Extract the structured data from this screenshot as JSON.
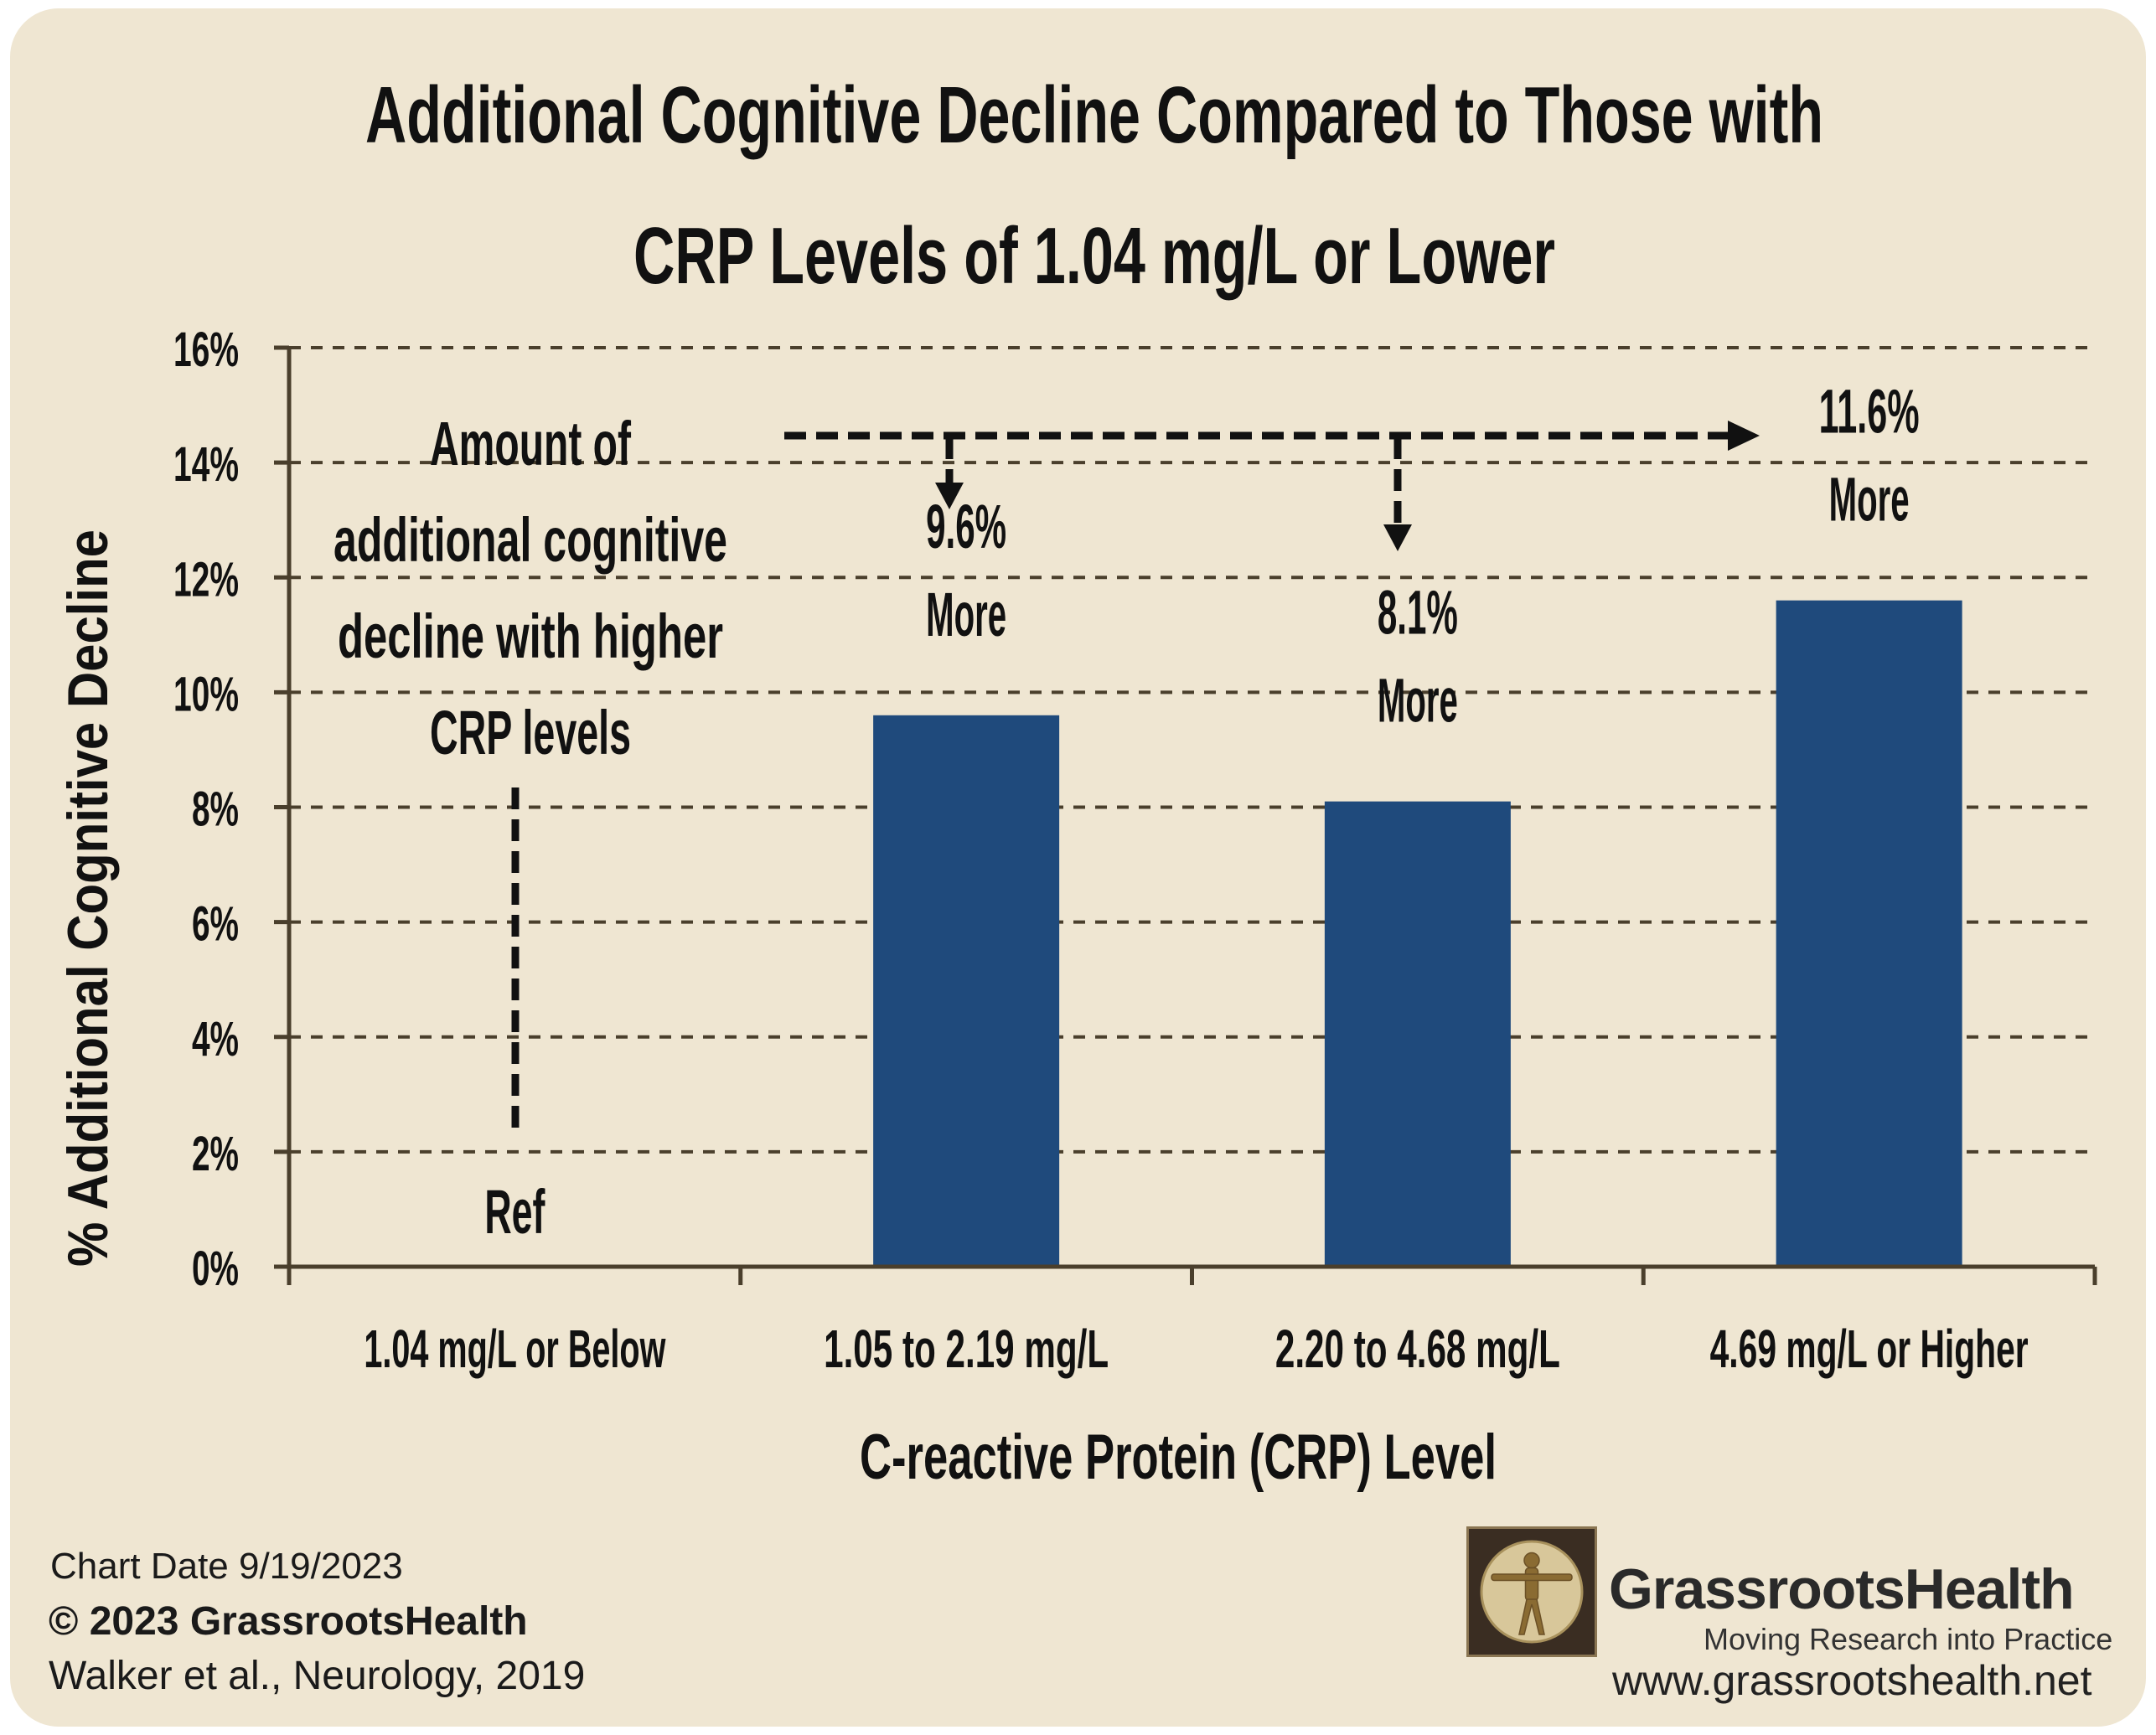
{
  "chart_data": {
    "type": "bar",
    "title": "Additional Cognitive  Decline Compared to Those with CRP Levels of 1.04 mg/L or Lower",
    "title_lines": [
      "Additional Cognitive  Decline Compared to Those with",
      "CRP Levels of 1.04 mg/L or Lower"
    ],
    "xlabel": "C-reactive Protein (CRP) Level",
    "ylabel": "% Additional Cognitive Decline",
    "categories": [
      "1.04 mg/L or Below",
      "1.05 to 2.19 mg/L",
      "2.20 to 4.68 mg/L",
      "4.69 mg/L or Higher"
    ],
    "values": [
      0,
      9.6,
      8.1,
      11.6
    ],
    "ylim": [
      0,
      16
    ],
    "yticks": [
      0,
      2,
      4,
      6,
      8,
      10,
      12,
      14,
      16
    ],
    "ytick_labels": [
      "0%",
      "2%",
      "4%",
      "6%",
      "8%",
      "10%",
      "12%",
      "14%",
      "16%"
    ],
    "grid": "horizontal dashed",
    "bar_color": "#1f4a7c",
    "data_labels": [
      {
        "category": "1.04 mg/L or Below",
        "lines": [
          "Ref"
        ]
      },
      {
        "category": "1.05 to 2.19 mg/L",
        "lines": [
          "9.6%",
          "More"
        ]
      },
      {
        "category": "2.20 to 4.68 mg/L",
        "lines": [
          "8.1%",
          "More"
        ]
      },
      {
        "category": "4.69 mg/L or Higher",
        "lines": [
          "11.6%",
          "More"
        ]
      }
    ],
    "annotation": [
      "Amount of",
      "additional cognitive",
      "decline with higher",
      "CRP levels"
    ]
  },
  "footer": {
    "chart_date": "Chart Date 9/19/2023",
    "copyright": "© 2023 GrassrootsHealth",
    "citation": "Walker et al., Neurology, 2019"
  },
  "brand": {
    "name": "GrassrootsHealth",
    "tagline": "Moving Research into Practice",
    "url": "www.grassrootshealth.net",
    "logo_icon": "vitruvian-man-icon"
  },
  "colors": {
    "background": "#efe6d2",
    "bar": "#1f4a7c",
    "axis": "#4a3f2c",
    "text": "#111111"
  }
}
